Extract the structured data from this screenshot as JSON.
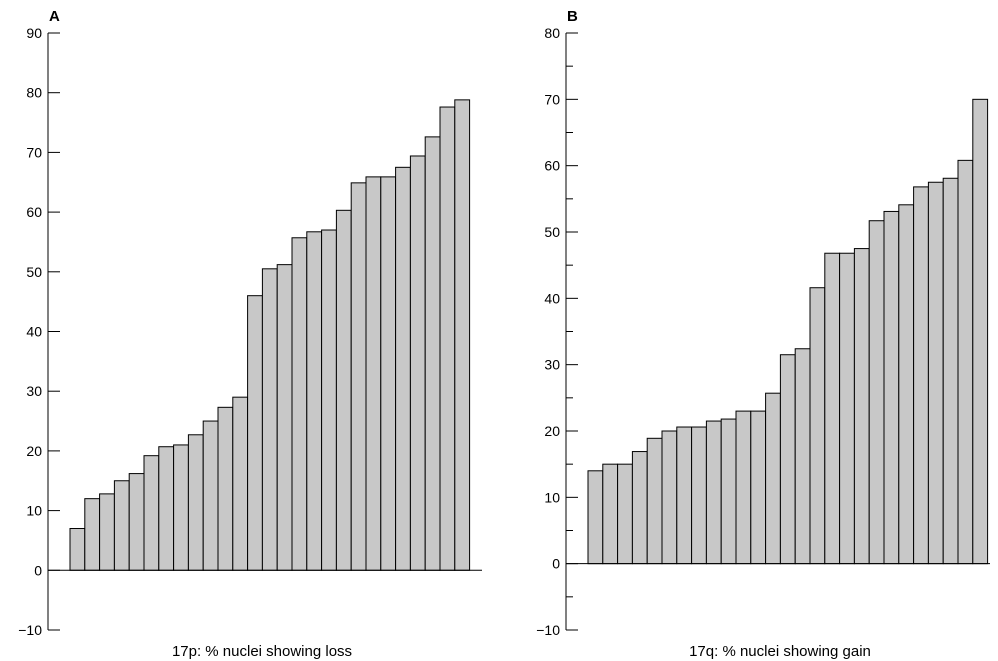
{
  "colors": {
    "bar_fill": "#c8c8c8",
    "bar_stroke": "#000000",
    "axis": "#000000",
    "background": "#ffffff"
  },
  "chart_data": [
    {
      "type": "bar",
      "panel_label": "A",
      "title": "",
      "xlabel": "17p: % nuclei showing loss",
      "ylabel": "",
      "ylim": [
        -10,
        90
      ],
      "yticks": [
        -10,
        0,
        10,
        20,
        30,
        40,
        50,
        60,
        70,
        80,
        90
      ],
      "ytick_labels": [
        "−10",
        "0",
        "10",
        "20",
        "30",
        "40",
        "50",
        "60",
        "70",
        "80",
        "90"
      ],
      "grid": false,
      "values": [
        7,
        12,
        12.8,
        15,
        16.2,
        19.2,
        20.7,
        21,
        22.7,
        25,
        27.3,
        29,
        46,
        50.5,
        51.2,
        55.7,
        56.7,
        57,
        60.3,
        64.9,
        65.9,
        65.9,
        67.5,
        69.4,
        72.6,
        77.6,
        78.8
      ]
    },
    {
      "type": "bar",
      "panel_label": "B",
      "title": "",
      "xlabel": "17q: % nuclei showing gain",
      "ylabel": "",
      "ylim": [
        -10,
        80
      ],
      "yticks": [
        -10,
        0,
        10,
        20,
        30,
        40,
        50,
        60,
        70,
        80
      ],
      "ytick_labels": [
        "−10",
        "0",
        "10",
        "20",
        "30",
        "40",
        "50",
        "60",
        "70",
        "80"
      ],
      "grid": false,
      "values": [
        14,
        15,
        15,
        16.9,
        18.9,
        20,
        20.6,
        20.6,
        21.5,
        21.8,
        23,
        23,
        25.7,
        31.5,
        32.4,
        41.6,
        46.8,
        46.8,
        47.5,
        51.7,
        53.1,
        54.1,
        56.8,
        57.5,
        58.1,
        60.8,
        70
      ]
    }
  ]
}
